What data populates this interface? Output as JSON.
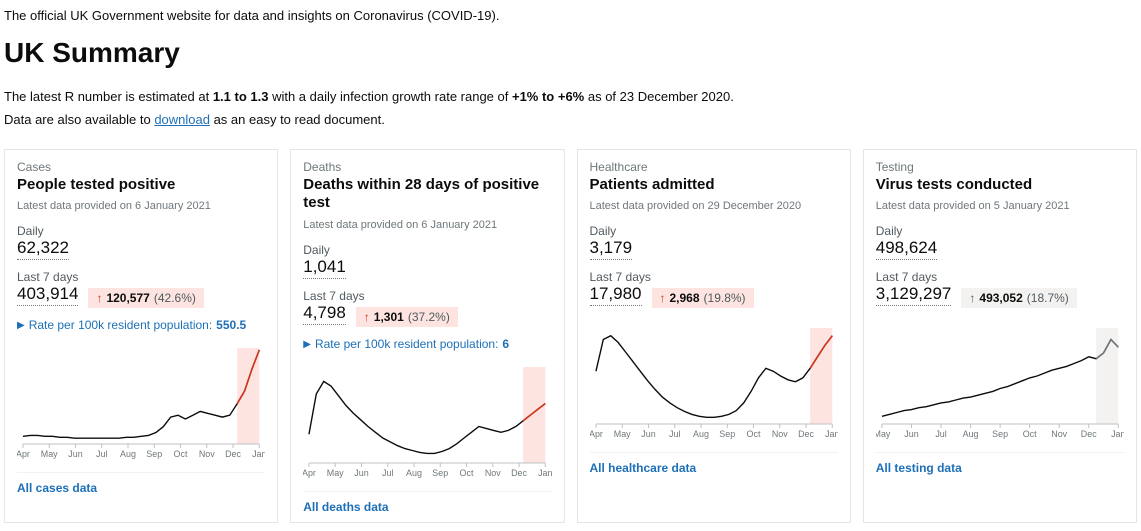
{
  "intro": "The official UK Government website for data and insights on Coronavirus (COVID-19).",
  "heading": "UK Summary",
  "summary_line1_pre": "The latest R number is estimated at ",
  "summary_line1_r": "1.1 to 1.3",
  "summary_line1_mid": " with a daily infection growth rate range of ",
  "summary_line1_growth": "+1% to +6%",
  "summary_line1_post": " as of 23 December 2020.",
  "summary_line2_pre": "Data are also available to ",
  "summary_line2_link": "download",
  "summary_line2_post": " as an easy to read document.",
  "xaxis": [
    "Apr",
    "May",
    "Jun",
    "Jul",
    "Aug",
    "Sep",
    "Oct",
    "Nov",
    "Dec",
    "Jan"
  ],
  "xaxis_testing": [
    "May",
    "Jun",
    "Jul",
    "Aug",
    "Sep",
    "Oct",
    "Nov",
    "Dec",
    "Jan"
  ],
  "colors": {
    "text": "#0b0c0c",
    "muted": "#6f777b",
    "link": "#1d70b8",
    "badge_bad_bg": "#fde4e1",
    "badge_neutral_bg": "#f3f2f1",
    "series": "#0b0c0c",
    "series_tail": "#d4351c",
    "axis": "#bfc1c3"
  },
  "cards": [
    {
      "category": "Cases",
      "title": "People tested positive",
      "date": "Latest data provided on 6 January 2021",
      "daily_label": "Daily",
      "daily_value": "62,322",
      "last7_label": "Last 7 days",
      "last7_value": "403,914",
      "change_arrow": "↑",
      "change_style": "up-red",
      "change_number": "120,577",
      "change_pct": "(42.6%)",
      "badge_class": "",
      "rate_text": "Rate per 100k resident population:",
      "rate_value": "550.5",
      "footer": "All cases data",
      "chart": {
        "type": "sparkline",
        "ylim": [
          0,
          100
        ],
        "highlight_recent": true,
        "highlight_color": "red",
        "values": [
          8,
          9,
          9,
          8,
          8,
          7,
          7,
          6,
          6,
          6,
          6,
          6,
          6,
          6,
          7,
          7,
          8,
          9,
          12,
          18,
          28,
          30,
          26,
          30,
          34,
          32,
          30,
          28,
          30,
          42,
          55,
          78,
          98
        ]
      }
    },
    {
      "category": "Deaths",
      "title": "Deaths within 28 days of positive test",
      "date": "Latest data provided on 6 January 2021",
      "daily_label": "Daily",
      "daily_value": "1,041",
      "last7_label": "Last 7 days",
      "last7_value": "4,798",
      "change_arrow": "↑",
      "change_style": "up-red",
      "change_number": "1,301",
      "change_pct": "(37.2%)",
      "badge_class": "",
      "rate_text": "Rate per 100k resident population:",
      "rate_value": "6",
      "footer": "All deaths data",
      "chart": {
        "type": "sparkline",
        "ylim": [
          0,
          100
        ],
        "highlight_recent": true,
        "highlight_color": "red",
        "values": [
          30,
          72,
          85,
          80,
          70,
          60,
          52,
          45,
          38,
          32,
          26,
          22,
          18,
          15,
          13,
          11,
          10,
          10,
          12,
          15,
          20,
          26,
          32,
          38,
          36,
          34,
          32,
          34,
          38,
          44,
          50,
          56,
          62
        ]
      }
    },
    {
      "category": "Healthcare",
      "title": "Patients admitted",
      "date": "Latest data provided on 29 December 2020",
      "daily_label": "Daily",
      "daily_value": "3,179",
      "last7_label": "Last 7 days",
      "last7_value": "17,980",
      "change_arrow": "↑",
      "change_style": "up-red",
      "change_number": "2,968",
      "change_pct": "(19.8%)",
      "badge_class": "",
      "rate_text": "",
      "rate_value": "",
      "footer": "All healthcare data",
      "chart": {
        "type": "sparkline",
        "ylim": [
          0,
          100
        ],
        "highlight_recent": true,
        "highlight_color": "red",
        "values": [
          55,
          88,
          92,
          85,
          75,
          65,
          55,
          45,
          36,
          28,
          22,
          17,
          13,
          10,
          8,
          7,
          7,
          8,
          10,
          14,
          22,
          34,
          48,
          58,
          55,
          50,
          46,
          44,
          48,
          58,
          70,
          82,
          92
        ]
      }
    },
    {
      "category": "Testing",
      "title": "Virus tests conducted",
      "date": "Latest data provided on 5 January 2021",
      "daily_label": "Daily",
      "daily_value": "498,624",
      "last7_label": "Last 7 days",
      "last7_value": "3,129,297",
      "change_arrow": "↑",
      "change_style": "up-grey",
      "change_number": "493,052",
      "change_pct": "(18.7%)",
      "badge_class": "neutral",
      "rate_text": "",
      "rate_value": "",
      "footer": "All testing data",
      "chart": {
        "type": "sparkline",
        "ylim": [
          0,
          100
        ],
        "highlight_recent": true,
        "highlight_color": "grey",
        "values": [
          8,
          10,
          12,
          14,
          15,
          17,
          18,
          20,
          22,
          23,
          25,
          27,
          28,
          30,
          32,
          34,
          37,
          39,
          42,
          45,
          48,
          50,
          53,
          56,
          58,
          60,
          63,
          66,
          70,
          68,
          74,
          88,
          80
        ]
      }
    }
  ]
}
